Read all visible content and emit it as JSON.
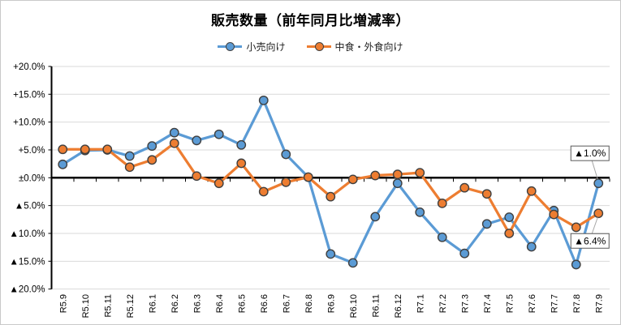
{
  "title": "販売数量（前年同月比増減率）",
  "colors": {
    "retail_blue": "#5B9BD5",
    "foodservice_orange": "#ED7D31",
    "marker_border": "#404040",
    "axis_black": "#000000",
    "gridline_gray": "#D9D9D9",
    "leader_gray": "#A6A6A6",
    "annotation_border": "#595959"
  },
  "chart_data": {
    "type": "line",
    "title": "販売数量（前年同月比増減率）",
    "categories": [
      "R5.9",
      "R5.10",
      "R5.11",
      "R5.12",
      "R6.1",
      "R6.2",
      "R6.3",
      "R6.4",
      "R6.5",
      "R6.6",
      "R6.7",
      "R6.8",
      "R6.9",
      "R6.10",
      "R6.11",
      "R6.12",
      "R7.1",
      "R7.2",
      "R7.3",
      "R7.4",
      "R7.5",
      "R7.6",
      "R7.7",
      "R7.8",
      "R7.9"
    ],
    "series": [
      {
        "name": "小売向け",
        "color": "#5B9BD5",
        "values": [
          2.4,
          4.9,
          5.0,
          3.9,
          5.7,
          8.1,
          6.7,
          7.8,
          5.9,
          13.9,
          4.2,
          0.1,
          -13.7,
          -15.3,
          -7.0,
          -1.0,
          -6.2,
          -10.7,
          -13.6,
          -8.3,
          -7.1,
          -12.4,
          -5.9,
          -15.6,
          -1.0
        ]
      },
      {
        "name": "中食・外食向け",
        "color": "#ED7D31",
        "values": [
          5.1,
          5.1,
          5.1,
          1.9,
          3.2,
          6.2,
          0.3,
          -1.0,
          2.6,
          -2.5,
          -0.8,
          0.1,
          -3.4,
          -0.3,
          0.4,
          0.6,
          0.9,
          -4.6,
          -1.8,
          -2.9,
          -10.0,
          -2.4,
          -6.6,
          -8.9,
          -6.4
        ]
      }
    ],
    "ylim": [
      -20,
      20
    ],
    "yticks": [
      {
        "value": 20,
        "label": "+20.0%"
      },
      {
        "value": 15,
        "label": "+15.0%"
      },
      {
        "value": 10,
        "label": "+10.0%"
      },
      {
        "value": 5,
        "label": "+5.0%"
      },
      {
        "value": 0,
        "label": "±0.0%"
      },
      {
        "value": -5,
        "label": "▲5.0%"
      },
      {
        "value": -10,
        "label": "▲10.0%"
      },
      {
        "value": -15,
        "label": "▲15.0%"
      },
      {
        "value": -20,
        "label": "▲20.0%"
      }
    ],
    "grid": "horizontal",
    "legend_position": "top",
    "annotations": [
      {
        "text": "▲1.0%",
        "series": 0,
        "point_index": 24,
        "placement": "above"
      },
      {
        "text": "▲6.4%",
        "series": 1,
        "point_index": 24,
        "placement": "below"
      }
    ]
  }
}
